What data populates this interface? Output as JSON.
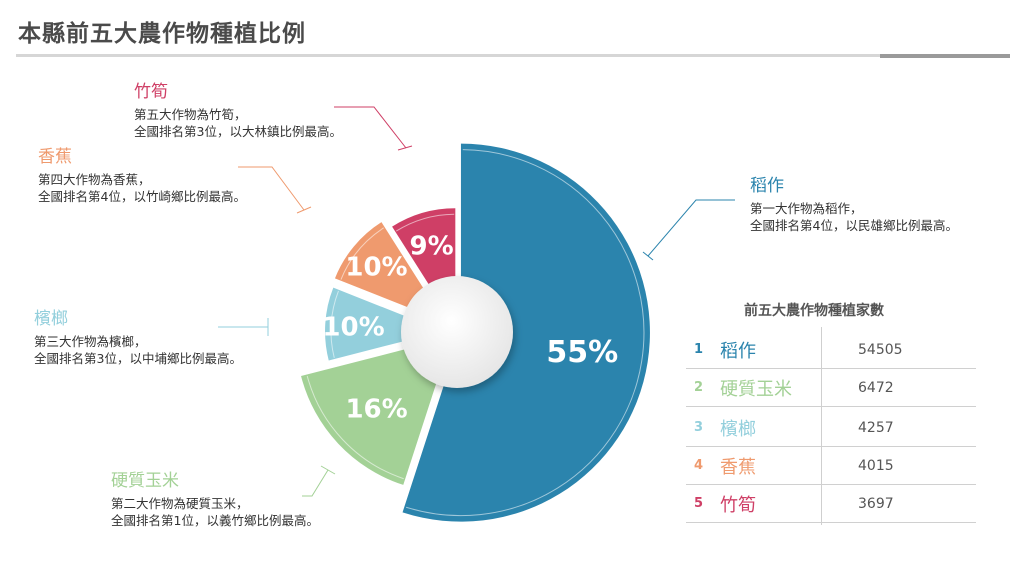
{
  "title": "本縣前五大農作物種植比例",
  "colors": {
    "rice": "#2b84ad",
    "corn": "#a3d196",
    "betel": "#93cfdc",
    "banana": "#ef9a6e",
    "bamboo": "#cf3f66"
  },
  "annotations": {
    "rice": {
      "name": "稻作",
      "line1": "第一大作物為稻作，",
      "line2": "全國排名第4位，以民雄鄉比例最高。"
    },
    "corn": {
      "name": "硬質玉米",
      "line1": "第二大作物為硬質玉米，",
      "line2": "全國排名第1位，以義竹鄉比例最高。"
    },
    "betel": {
      "name": "檳榔",
      "line1": "第三大作物為檳榔，",
      "line2": "全國排名第3位，以中埔鄉比例最高。"
    },
    "banana": {
      "name": "香蕉",
      "line1": "第四大作物為香蕉，",
      "line2": "全國排名第4位，以竹崎鄉比例最高。"
    },
    "bamboo": {
      "name": "竹筍",
      "line1": "第五大作物為竹筍，",
      "line2": "全國排名第3位，以大林鎮比例最高。"
    }
  },
  "table": {
    "title": "前五大農作物種植家數",
    "rows": [
      {
        "rank": "1",
        "crop": "稻作",
        "value": "54505"
      },
      {
        "rank": "2",
        "crop": "硬質玉米",
        "value": "6472"
      },
      {
        "rank": "3",
        "crop": "檳榔",
        "value": "4257"
      },
      {
        "rank": "4",
        "crop": "香蕉",
        "value": "4015"
      },
      {
        "rank": "5",
        "crop": "竹筍",
        "value": "3697"
      }
    ]
  },
  "chart_data": {
    "type": "pie",
    "title": "本縣前五大農作物種植比例",
    "categories": [
      "稻作",
      "硬質玉米",
      "檳榔",
      "香蕉",
      "竹筍"
    ],
    "values": [
      55,
      16,
      10,
      10,
      9
    ],
    "labels": [
      "55%",
      "16%",
      "10%",
      "10%",
      "9%"
    ],
    "start": "12 o'clock, clockwise",
    "donut": true,
    "exploded_slices": true
  }
}
